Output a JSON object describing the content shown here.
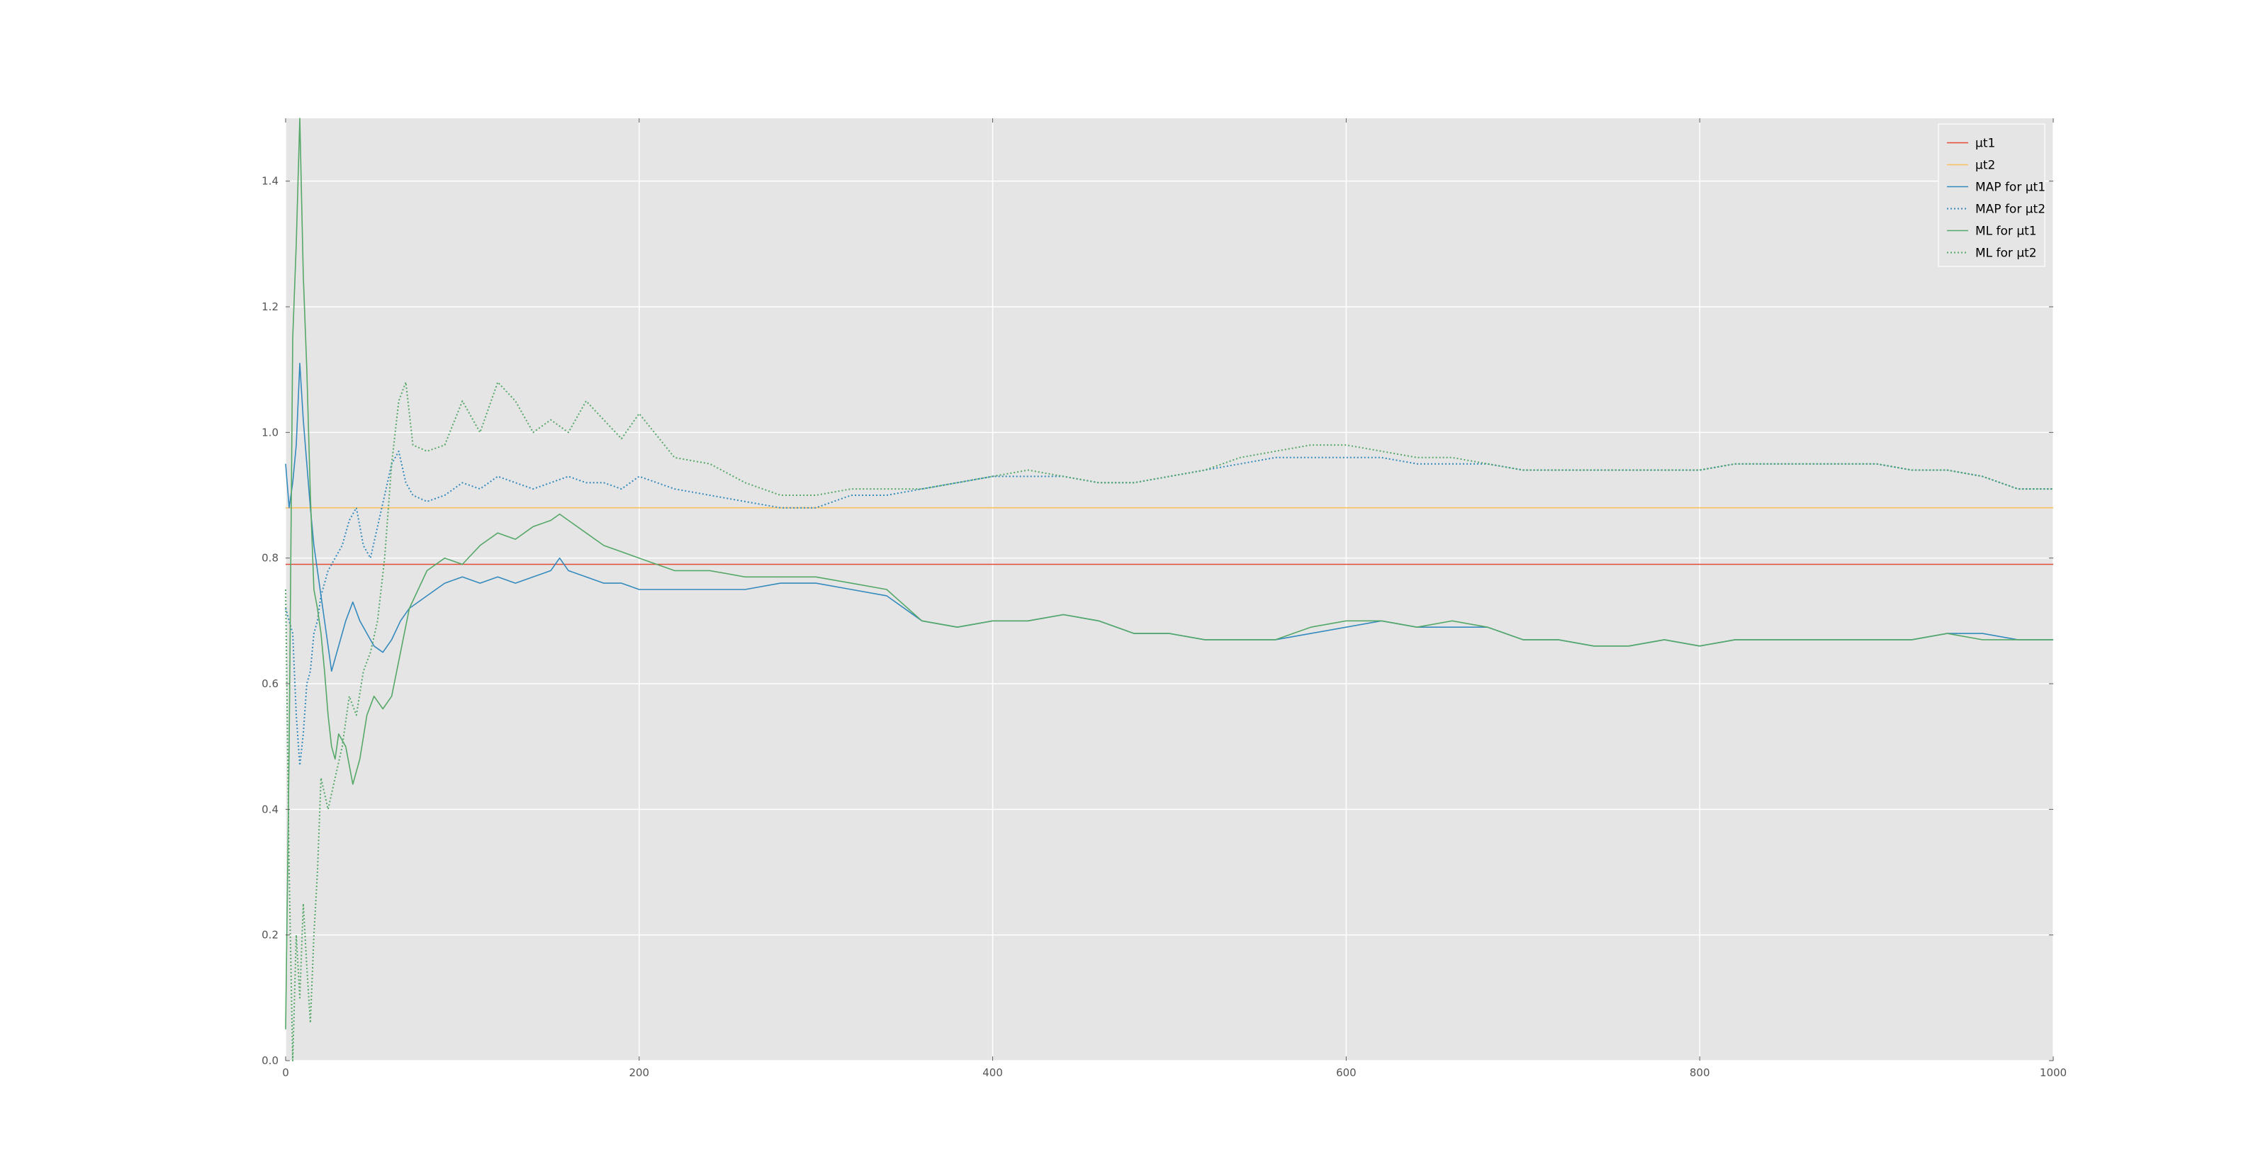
{
  "chart_data": {
    "type": "line",
    "title": "",
    "xlabel": "",
    "ylabel": "",
    "xlim": [
      0,
      1000
    ],
    "ylim": [
      0.0,
      1.5
    ],
    "x_ticks": [
      0,
      200,
      400,
      600,
      800,
      1000
    ],
    "y_ticks": [
      0.0,
      0.2,
      0.4,
      0.6,
      0.8,
      1.0,
      1.2,
      1.4
    ],
    "x_tick_labels": [
      "0",
      "200",
      "400",
      "600",
      "800",
      "1000"
    ],
    "y_tick_labels": [
      "0.0",
      "0.2",
      "0.4",
      "0.6",
      "0.8",
      "1.0",
      "1.2",
      "1.4"
    ],
    "grid": true,
    "background": "#e5e5e5",
    "legend_position": "top-right",
    "series": [
      {
        "name": "μt1",
        "color": "#e24a33",
        "style": "solid",
        "points": [
          [
            0,
            0.79
          ],
          [
            1000,
            0.79
          ]
        ]
      },
      {
        "name": "μt2",
        "color": "#fbc15e",
        "style": "solid",
        "points": [
          [
            0,
            0.88
          ],
          [
            1000,
            0.88
          ]
        ]
      },
      {
        "name": "MAP for μt1",
        "color": "#348abd",
        "style": "solid",
        "points": [
          [
            0,
            0.95
          ],
          [
            2,
            0.88
          ],
          [
            4,
            0.92
          ],
          [
            6,
            0.98
          ],
          [
            8,
            1.11
          ],
          [
            10,
            1.02
          ],
          [
            12,
            0.95
          ],
          [
            14,
            0.88
          ],
          [
            16,
            0.82
          ],
          [
            18,
            0.78
          ],
          [
            20,
            0.74
          ],
          [
            22,
            0.7
          ],
          [
            24,
            0.66
          ],
          [
            26,
            0.62
          ],
          [
            28,
            0.64
          ],
          [
            30,
            0.66
          ],
          [
            34,
            0.7
          ],
          [
            38,
            0.73
          ],
          [
            42,
            0.7
          ],
          [
            46,
            0.68
          ],
          [
            50,
            0.66
          ],
          [
            55,
            0.65
          ],
          [
            60,
            0.67
          ],
          [
            65,
            0.7
          ],
          [
            70,
            0.72
          ],
          [
            80,
            0.74
          ],
          [
            90,
            0.76
          ],
          [
            100,
            0.77
          ],
          [
            110,
            0.76
          ],
          [
            120,
            0.77
          ],
          [
            130,
            0.76
          ],
          [
            140,
            0.77
          ],
          [
            150,
            0.78
          ],
          [
            155,
            0.8
          ],
          [
            160,
            0.78
          ],
          [
            170,
            0.77
          ],
          [
            180,
            0.76
          ],
          [
            190,
            0.76
          ],
          [
            200,
            0.75
          ],
          [
            220,
            0.75
          ],
          [
            240,
            0.75
          ],
          [
            260,
            0.75
          ],
          [
            280,
            0.76
          ],
          [
            300,
            0.76
          ],
          [
            320,
            0.75
          ],
          [
            340,
            0.74
          ],
          [
            360,
            0.7
          ],
          [
            380,
            0.69
          ],
          [
            400,
            0.7
          ],
          [
            420,
            0.7
          ],
          [
            440,
            0.71
          ],
          [
            460,
            0.7
          ],
          [
            480,
            0.68
          ],
          [
            500,
            0.68
          ],
          [
            520,
            0.67
          ],
          [
            540,
            0.67
          ],
          [
            560,
            0.67
          ],
          [
            580,
            0.68
          ],
          [
            600,
            0.69
          ],
          [
            620,
            0.7
          ],
          [
            640,
            0.69
          ],
          [
            660,
            0.69
          ],
          [
            680,
            0.69
          ],
          [
            700,
            0.67
          ],
          [
            720,
            0.67
          ],
          [
            740,
            0.66
          ],
          [
            760,
            0.66
          ],
          [
            780,
            0.67
          ],
          [
            800,
            0.66
          ],
          [
            820,
            0.67
          ],
          [
            840,
            0.67
          ],
          [
            860,
            0.67
          ],
          [
            880,
            0.67
          ],
          [
            900,
            0.67
          ],
          [
            920,
            0.67
          ],
          [
            940,
            0.68
          ],
          [
            960,
            0.68
          ],
          [
            980,
            0.67
          ],
          [
            1000,
            0.67
          ]
        ]
      },
      {
        "name": "MAP for μt2",
        "color": "#348abd",
        "style": "dotted",
        "points": [
          [
            0,
            0.72
          ],
          [
            2,
            0.7
          ],
          [
            4,
            0.68
          ],
          [
            6,
            0.55
          ],
          [
            8,
            0.47
          ],
          [
            10,
            0.52
          ],
          [
            12,
            0.6
          ],
          [
            14,
            0.62
          ],
          [
            16,
            0.68
          ],
          [
            18,
            0.7
          ],
          [
            20,
            0.74
          ],
          [
            24,
            0.78
          ],
          [
            28,
            0.8
          ],
          [
            32,
            0.82
          ],
          [
            36,
            0.86
          ],
          [
            40,
            0.88
          ],
          [
            44,
            0.82
          ],
          [
            48,
            0.8
          ],
          [
            52,
            0.85
          ],
          [
            56,
            0.9
          ],
          [
            60,
            0.95
          ],
          [
            64,
            0.97
          ],
          [
            68,
            0.92
          ],
          [
            72,
            0.9
          ],
          [
            80,
            0.89
          ],
          [
            90,
            0.9
          ],
          [
            100,
            0.92
          ],
          [
            110,
            0.91
          ],
          [
            120,
            0.93
          ],
          [
            130,
            0.92
          ],
          [
            140,
            0.91
          ],
          [
            150,
            0.92
          ],
          [
            160,
            0.93
          ],
          [
            170,
            0.92
          ],
          [
            180,
            0.92
          ],
          [
            190,
            0.91
          ],
          [
            200,
            0.93
          ],
          [
            220,
            0.91
          ],
          [
            240,
            0.9
          ],
          [
            260,
            0.89
          ],
          [
            280,
            0.88
          ],
          [
            300,
            0.88
          ],
          [
            320,
            0.9
          ],
          [
            340,
            0.9
          ],
          [
            360,
            0.91
          ],
          [
            380,
            0.92
          ],
          [
            400,
            0.93
          ],
          [
            420,
            0.93
          ],
          [
            440,
            0.93
          ],
          [
            460,
            0.92
          ],
          [
            480,
            0.92
          ],
          [
            500,
            0.93
          ],
          [
            520,
            0.94
          ],
          [
            540,
            0.95
          ],
          [
            560,
            0.96
          ],
          [
            580,
            0.96
          ],
          [
            600,
            0.96
          ],
          [
            620,
            0.96
          ],
          [
            640,
            0.95
          ],
          [
            660,
            0.95
          ],
          [
            680,
            0.95
          ],
          [
            700,
            0.94
          ],
          [
            720,
            0.94
          ],
          [
            740,
            0.94
          ],
          [
            760,
            0.94
          ],
          [
            780,
            0.94
          ],
          [
            800,
            0.94
          ],
          [
            820,
            0.95
          ],
          [
            840,
            0.95
          ],
          [
            860,
            0.95
          ],
          [
            880,
            0.95
          ],
          [
            900,
            0.95
          ],
          [
            920,
            0.94
          ],
          [
            940,
            0.94
          ],
          [
            960,
            0.93
          ],
          [
            980,
            0.91
          ],
          [
            1000,
            0.91
          ]
        ]
      },
      {
        "name": "ML for μt1",
        "color": "#55a868",
        "style": "solid",
        "points": [
          [
            0,
            0.05
          ],
          [
            2,
            0.5
          ],
          [
            4,
            1.15
          ],
          [
            6,
            1.3
          ],
          [
            8,
            1.5
          ],
          [
            10,
            1.25
          ],
          [
            12,
            1.1
          ],
          [
            14,
            0.9
          ],
          [
            16,
            0.75
          ],
          [
            18,
            0.72
          ],
          [
            20,
            0.68
          ],
          [
            22,
            0.62
          ],
          [
            24,
            0.55
          ],
          [
            26,
            0.5
          ],
          [
            28,
            0.48
          ],
          [
            30,
            0.52
          ],
          [
            34,
            0.5
          ],
          [
            38,
            0.44
          ],
          [
            42,
            0.48
          ],
          [
            46,
            0.55
          ],
          [
            50,
            0.58
          ],
          [
            55,
            0.56
          ],
          [
            60,
            0.58
          ],
          [
            65,
            0.65
          ],
          [
            70,
            0.72
          ],
          [
            80,
            0.78
          ],
          [
            90,
            0.8
          ],
          [
            100,
            0.79
          ],
          [
            110,
            0.82
          ],
          [
            120,
            0.84
          ],
          [
            130,
            0.83
          ],
          [
            140,
            0.85
          ],
          [
            150,
            0.86
          ],
          [
            155,
            0.87
          ],
          [
            160,
            0.86
          ],
          [
            170,
            0.84
          ],
          [
            180,
            0.82
          ],
          [
            190,
            0.81
          ],
          [
            200,
            0.8
          ],
          [
            220,
            0.78
          ],
          [
            240,
            0.78
          ],
          [
            260,
            0.77
          ],
          [
            280,
            0.77
          ],
          [
            300,
            0.77
          ],
          [
            320,
            0.76
          ],
          [
            340,
            0.75
          ],
          [
            360,
            0.7
          ],
          [
            380,
            0.69
          ],
          [
            400,
            0.7
          ],
          [
            420,
            0.7
          ],
          [
            440,
            0.71
          ],
          [
            460,
            0.7
          ],
          [
            480,
            0.68
          ],
          [
            500,
            0.68
          ],
          [
            520,
            0.67
          ],
          [
            540,
            0.67
          ],
          [
            560,
            0.67
          ],
          [
            580,
            0.69
          ],
          [
            600,
            0.7
          ],
          [
            620,
            0.7
          ],
          [
            640,
            0.69
          ],
          [
            660,
            0.7
          ],
          [
            680,
            0.69
          ],
          [
            700,
            0.67
          ],
          [
            720,
            0.67
          ],
          [
            740,
            0.66
          ],
          [
            760,
            0.66
          ],
          [
            780,
            0.67
          ],
          [
            800,
            0.66
          ],
          [
            820,
            0.67
          ],
          [
            840,
            0.67
          ],
          [
            860,
            0.67
          ],
          [
            880,
            0.67
          ],
          [
            900,
            0.67
          ],
          [
            920,
            0.67
          ],
          [
            940,
            0.68
          ],
          [
            960,
            0.67
          ],
          [
            980,
            0.67
          ],
          [
            1000,
            0.67
          ]
        ]
      },
      {
        "name": "ML for μt2",
        "color": "#55a868",
        "style": "dotted",
        "points": [
          [
            0,
            0.75
          ],
          [
            2,
            0.3
          ],
          [
            4,
            0.0
          ],
          [
            6,
            0.2
          ],
          [
            8,
            0.1
          ],
          [
            10,
            0.25
          ],
          [
            12,
            0.15
          ],
          [
            14,
            0.06
          ],
          [
            16,
            0.2
          ],
          [
            18,
            0.3
          ],
          [
            20,
            0.45
          ],
          [
            24,
            0.4
          ],
          [
            28,
            0.45
          ],
          [
            32,
            0.5
          ],
          [
            36,
            0.58
          ],
          [
            40,
            0.55
          ],
          [
            44,
            0.62
          ],
          [
            48,
            0.65
          ],
          [
            52,
            0.7
          ],
          [
            56,
            0.8
          ],
          [
            60,
            0.95
          ],
          [
            64,
            1.05
          ],
          [
            68,
            1.08
          ],
          [
            72,
            0.98
          ],
          [
            80,
            0.97
          ],
          [
            90,
            0.98
          ],
          [
            100,
            1.05
          ],
          [
            110,
            1.0
          ],
          [
            120,
            1.08
          ],
          [
            130,
            1.05
          ],
          [
            140,
            1.0
          ],
          [
            150,
            1.02
          ],
          [
            160,
            1.0
          ],
          [
            170,
            1.05
          ],
          [
            180,
            1.02
          ],
          [
            190,
            0.99
          ],
          [
            200,
            1.03
          ],
          [
            220,
            0.96
          ],
          [
            240,
            0.95
          ],
          [
            260,
            0.92
          ],
          [
            280,
            0.9
          ],
          [
            300,
            0.9
          ],
          [
            320,
            0.91
          ],
          [
            340,
            0.91
          ],
          [
            360,
            0.91
          ],
          [
            380,
            0.92
          ],
          [
            400,
            0.93
          ],
          [
            420,
            0.94
          ],
          [
            440,
            0.93
          ],
          [
            460,
            0.92
          ],
          [
            480,
            0.92
          ],
          [
            500,
            0.93
          ],
          [
            520,
            0.94
          ],
          [
            540,
            0.96
          ],
          [
            560,
            0.97
          ],
          [
            580,
            0.98
          ],
          [
            600,
            0.98
          ],
          [
            620,
            0.97
          ],
          [
            640,
            0.96
          ],
          [
            660,
            0.96
          ],
          [
            680,
            0.95
          ],
          [
            700,
            0.94
          ],
          [
            720,
            0.94
          ],
          [
            740,
            0.94
          ],
          [
            760,
            0.94
          ],
          [
            780,
            0.94
          ],
          [
            800,
            0.94
          ],
          [
            820,
            0.95
          ],
          [
            840,
            0.95
          ],
          [
            860,
            0.95
          ],
          [
            880,
            0.95
          ],
          [
            900,
            0.95
          ],
          [
            920,
            0.94
          ],
          [
            940,
            0.94
          ],
          [
            960,
            0.93
          ],
          [
            980,
            0.91
          ],
          [
            1000,
            0.91
          ]
        ]
      }
    ]
  }
}
